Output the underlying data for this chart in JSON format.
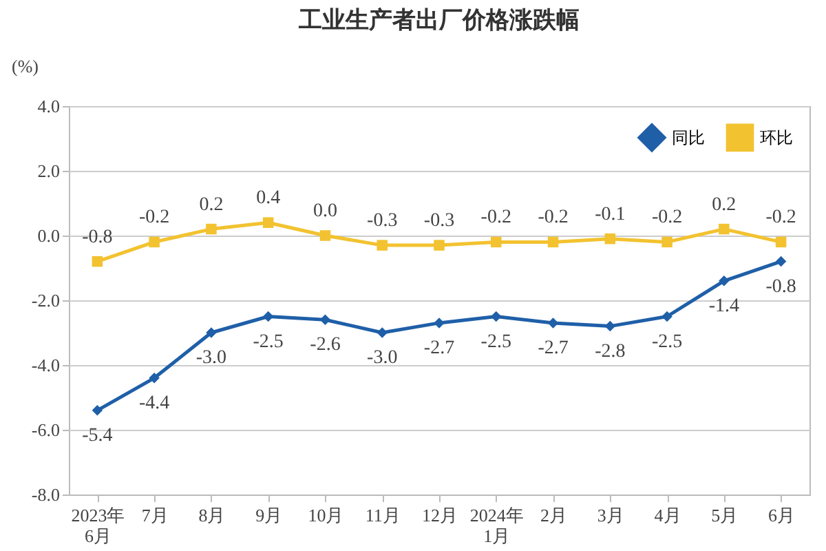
{
  "chart_data": {
    "type": "line",
    "title": "工业生产者出厂价格涨跌幅",
    "ylabel": "(%)",
    "categories": [
      "2023年\n6月",
      "7月",
      "8月",
      "9月",
      "10月",
      "11月",
      "12月",
      "2024年\n1月",
      "2月",
      "3月",
      "4月",
      "5月",
      "6月"
    ],
    "series": [
      {
        "name": "同比",
        "color": "#1f5fa8",
        "marker": "diamond",
        "values": [
          -5.4,
          -4.4,
          -3.0,
          -2.5,
          -2.6,
          -3.0,
          -2.7,
          -2.5,
          -2.7,
          -2.8,
          -2.5,
          -1.4,
          -0.8
        ],
        "value_labels": [
          "-5.4",
          "-4.4",
          "-3.0",
          "-2.5",
          "-2.6",
          "-3.0",
          "-2.7",
          "-2.5",
          "-2.7",
          "-2.8",
          "-2.5",
          "-1.4",
          "-0.8"
        ]
      },
      {
        "name": "环比",
        "color": "#f2c230",
        "marker": "square",
        "values": [
          -0.8,
          -0.2,
          0.2,
          0.4,
          0.0,
          -0.3,
          -0.3,
          -0.2,
          -0.2,
          -0.1,
          -0.2,
          0.2,
          -0.2
        ],
        "value_labels": [
          "-0.8",
          "-0.2",
          "0.2",
          "0.4",
          "0.0",
          "-0.3",
          "-0.3",
          "-0.2",
          "-0.2",
          "-0.1",
          "-0.2",
          "0.2",
          "-0.2"
        ]
      }
    ],
    "ylim": [
      -8.0,
      4.0
    ],
    "yticks": [
      {
        "value": -8,
        "label": "-8.0"
      },
      {
        "value": -6,
        "label": "-6.0"
      },
      {
        "value": -4,
        "label": "-4.0"
      },
      {
        "value": -2,
        "label": "-2.0"
      },
      {
        "value": 0,
        "label": "0.0"
      },
      {
        "value": 2,
        "label": "2.0"
      },
      {
        "value": 4,
        "label": "4.0"
      }
    ],
    "grid": "y",
    "legend": "top right",
    "line_style": "solid"
  }
}
